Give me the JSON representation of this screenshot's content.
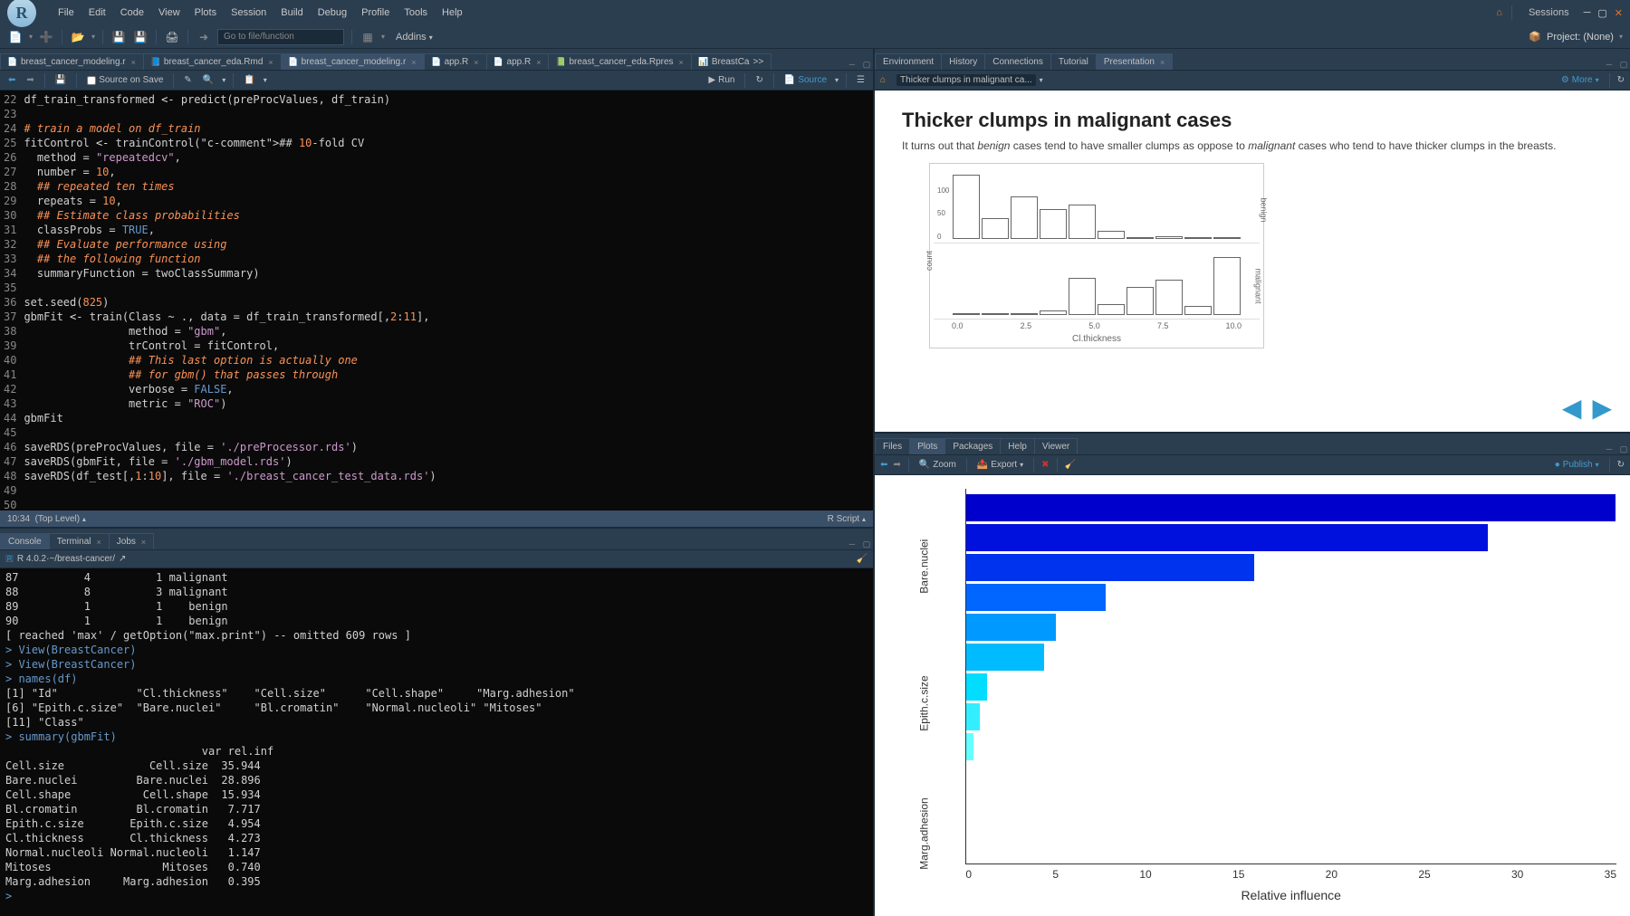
{
  "menubar": [
    "File",
    "Edit",
    "Code",
    "View",
    "Plots",
    "Session",
    "Build",
    "Debug",
    "Profile",
    "Tools",
    "Help"
  ],
  "titlebar_right": {
    "sessions": "Sessions"
  },
  "toolbar": {
    "goto_placeholder": "Go to file/function",
    "addins": "Addins",
    "project_label": "Project: (None)"
  },
  "editor_tabs": [
    {
      "label": "breast_cancer_modeling.r",
      "icon": "📄",
      "active": false
    },
    {
      "label": "breast_cancer_eda.Rmd",
      "icon": "📘",
      "active": false
    },
    {
      "label": "breast_cancer_modeling.r",
      "icon": "📄",
      "active": true
    },
    {
      "label": "app.R",
      "icon": "📄",
      "active": false
    },
    {
      "label": "app.R",
      "icon": "📄",
      "active": false
    },
    {
      "label": "breast_cancer_eda.Rpres",
      "icon": "📗",
      "active": false
    },
    {
      "label": "BreastCa",
      "icon": "📊",
      "active": false,
      "overflow": ">>"
    }
  ],
  "editor_toolbar": {
    "source_on_save": "Source on Save",
    "run": "Run",
    "source": "Source"
  },
  "code_lines": [
    {
      "n": 22,
      "raw": "df_train_transformed <- predict(preProcValues, df_train)"
    },
    {
      "n": 23,
      "raw": ""
    },
    {
      "n": 24,
      "raw": "# train a model on df_train",
      "comment": true
    },
    {
      "n": 25,
      "raw": "fitControl <- trainControl(## 10-fold CV",
      "tail_comment": "## 10-fold CV"
    },
    {
      "n": 26,
      "raw": "  method = \"repeatedcv\","
    },
    {
      "n": 27,
      "raw": "  number = 10,"
    },
    {
      "n": 28,
      "raw": "  ## repeated ten times",
      "comment": true
    },
    {
      "n": 29,
      "raw": "  repeats = 10,"
    },
    {
      "n": 30,
      "raw": "  ## Estimate class probabilities",
      "comment": true
    },
    {
      "n": 31,
      "raw": "  classProbs = TRUE,"
    },
    {
      "n": 32,
      "raw": "  ## Evaluate performance using",
      "comment": true
    },
    {
      "n": 33,
      "raw": "  ## the following function",
      "comment": true
    },
    {
      "n": 34,
      "raw": "  summaryFunction = twoClassSummary)"
    },
    {
      "n": 35,
      "raw": ""
    },
    {
      "n": 36,
      "raw": "set.seed(825)"
    },
    {
      "n": 37,
      "raw": "gbmFit <- train(Class ~ ., data = df_train_transformed[,2:11],"
    },
    {
      "n": 38,
      "raw": "                method = \"gbm\","
    },
    {
      "n": 39,
      "raw": "                trControl = fitControl,"
    },
    {
      "n": 40,
      "raw": "                ## This last option is actually one",
      "comment": true
    },
    {
      "n": 41,
      "raw": "                ## for gbm() that passes through",
      "comment": true
    },
    {
      "n": 42,
      "raw": "                verbose = FALSE,"
    },
    {
      "n": 43,
      "raw": "                metric = \"ROC\")"
    },
    {
      "n": 44,
      "raw": "gbmFit"
    },
    {
      "n": 45,
      "raw": ""
    },
    {
      "n": 46,
      "raw": "saveRDS(preProcValues, file = './preProcessor.rds')"
    },
    {
      "n": 47,
      "raw": "saveRDS(gbmFit, file = './gbm_model.rds')"
    },
    {
      "n": 48,
      "raw": "saveRDS(df_test[,1:10], file = './breast_cancer_test_data.rds')"
    },
    {
      "n": 49,
      "raw": ""
    },
    {
      "n": 50,
      "raw": ""
    }
  ],
  "editor_status": {
    "pos": "10:34",
    "scope": "(Top Level)",
    "lang": "R Script"
  },
  "console_tabs": [
    "Console",
    "Terminal",
    "Jobs"
  ],
  "console_header": {
    "version": "R 4.0.2",
    "path": "~/breast-cancer/"
  },
  "console_lines": [
    "87          4          1 malignant",
    "88          8          3 malignant",
    "89          1          1    benign",
    "90          1          1    benign",
    "[ reached 'max' / getOption(\"max.print\") -- omitted 609 rows ]",
    "> View(BreastCancer)",
    "> View(BreastCancer)",
    "> names(df)",
    "[1] \"Id\"            \"Cl.thickness\"    \"Cell.size\"      \"Cell.shape\"     \"Marg.adhesion\"",
    "[6] \"Epith.c.size\"  \"Bare.nuclei\"     \"Bl.cromatin\"    \"Normal.nucleoli\" \"Mitoses\"",
    "[11] \"Class\"",
    "> summary(gbmFit)",
    "                              var rel.inf",
    "Cell.size             Cell.size  35.944",
    "Bare.nuclei         Bare.nuclei  28.896",
    "Cell.shape           Cell.shape  15.934",
    "Bl.cromatin         Bl.cromatin   7.717",
    "Epith.c.size       Epith.c.size   4.954",
    "Cl.thickness       Cl.thickness   4.273",
    "Normal.nucleoli Normal.nucleoli   1.147",
    "Mitoses                 Mitoses   0.740",
    "Marg.adhesion     Marg.adhesion   0.395",
    "> "
  ],
  "env_tabs": [
    "Environment",
    "History",
    "Connections",
    "Tutorial",
    "Presentation"
  ],
  "env_active": 4,
  "pres_toolbar": {
    "breadcrumb": "Thicker clumps in malignant ca...",
    "more": "More"
  },
  "presentation": {
    "title": "Thicker clumps in malignant cases",
    "description": "It turns out that benign cases tend to have smaller clumps as oppose to malignant cases who tend to have thicker clumps in the breasts.",
    "chart": {
      "type": "histogram-facet",
      "xlabel": "Cl.thickness",
      "ylabel": "count",
      "xticks": [
        "0.0",
        "2.5",
        "5.0",
        "7.5",
        "10.0"
      ],
      "xlim": [
        0,
        10.5
      ],
      "ymax_top": 140,
      "ytick_top": [
        0,
        50,
        100
      ],
      "ymax_bot": 70,
      "bar_fill": "#ffffff",
      "bar_stroke": "#666666",
      "facets": [
        {
          "label": "benign",
          "bars": [
            138,
            45,
            92,
            65,
            73,
            18,
            0,
            6,
            0,
            0
          ]
        },
        {
          "label": "malignant",
          "bars": [
            2,
            2,
            2,
            5,
            40,
            12,
            30,
            38,
            10,
            62
          ]
        }
      ]
    }
  },
  "plot_tabs": [
    "Files",
    "Plots",
    "Packages",
    "Help",
    "Viewer"
  ],
  "plot_active": 1,
  "plot_toolbar": {
    "zoom": "Zoom",
    "export": "Export",
    "publish": "Publish"
  },
  "plot": {
    "type": "hbar",
    "xlabel": "Relative influence",
    "xlim": [
      0,
      36
    ],
    "xticks": [
      0,
      5,
      10,
      15,
      20,
      25,
      30,
      35
    ],
    "ylabels_grouped": [
      "Bare.nuclei",
      "Epith.c.size",
      "Marg.adhesion"
    ],
    "bars": [
      {
        "value": 35.944,
        "color": "#0000cc"
      },
      {
        "value": 28.896,
        "color": "#0011dd"
      },
      {
        "value": 15.934,
        "color": "#0033ee"
      },
      {
        "value": 7.717,
        "color": "#0066ff"
      },
      {
        "value": 4.954,
        "color": "#0099ff"
      },
      {
        "value": 4.273,
        "color": "#00bbff"
      },
      {
        "value": 1.147,
        "color": "#00ddff"
      },
      {
        "value": 0.74,
        "color": "#33eeff"
      },
      {
        "value": 0.395,
        "color": "#66ffff"
      }
    ],
    "background": "#ffffff"
  }
}
